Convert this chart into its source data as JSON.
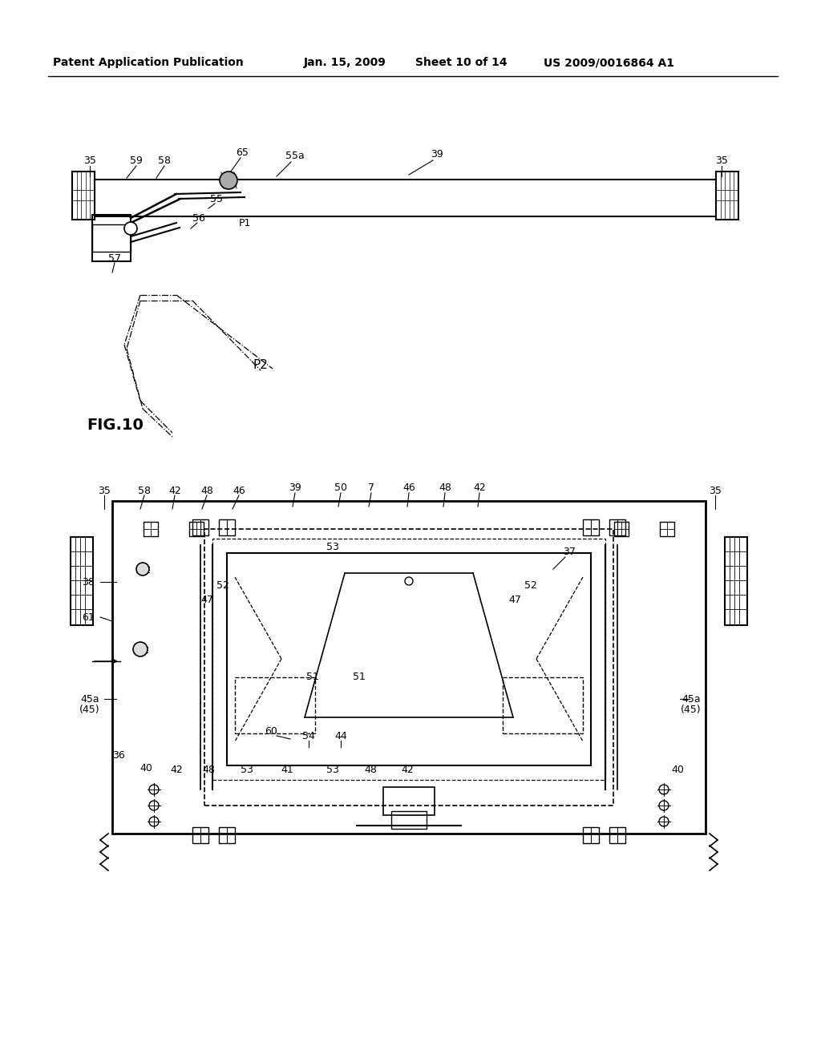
{
  "background_color": "#ffffff",
  "header_text": "Patent Application Publication",
  "header_date": "Jan. 15, 2009",
  "header_sheet": "Sheet 10 of 14",
  "header_patent": "US 2009/0016864 A1",
  "fig_label": "FIG.10"
}
